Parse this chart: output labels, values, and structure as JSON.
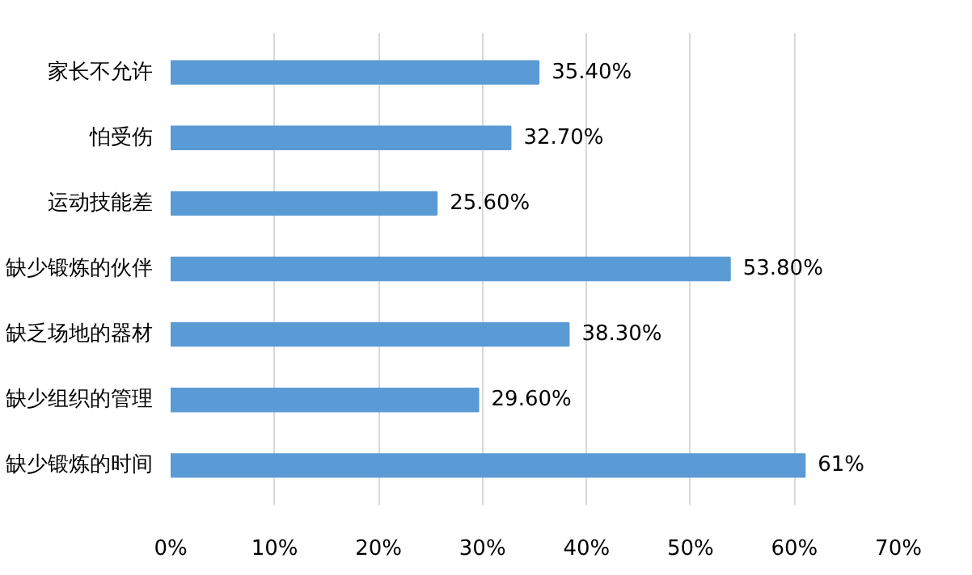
{
  "chart_data": {
    "type": "bar",
    "orientation": "horizontal",
    "categories": [
      "家长不允许",
      "怕受伤",
      "运动技能差",
      "缺少锻炼的伙伴",
      "缺乏场地的器材",
      "缺少组织的管理",
      "缺少锻炼的时间"
    ],
    "values": [
      35.4,
      32.7,
      25.6,
      53.8,
      38.3,
      29.6,
      61
    ],
    "value_labels": [
      "35.40%",
      "32.70%",
      "25.60%",
      "53.80%",
      "38.30%",
      "29.60%",
      "61%"
    ],
    "color": "#5b9bd5",
    "xlim": [
      0,
      70
    ],
    "xticks": [
      {
        "value": 0,
        "label": "0%"
      },
      {
        "value": 10,
        "label": "10%"
      },
      {
        "value": 20,
        "label": "20%"
      },
      {
        "value": 30,
        "label": "30%"
      },
      {
        "value": 40,
        "label": "40%"
      },
      {
        "value": 50,
        "label": "50%"
      },
      {
        "value": 60,
        "label": "60%"
      },
      {
        "value": 70,
        "label": "70%"
      }
    ],
    "grid": "x"
  }
}
